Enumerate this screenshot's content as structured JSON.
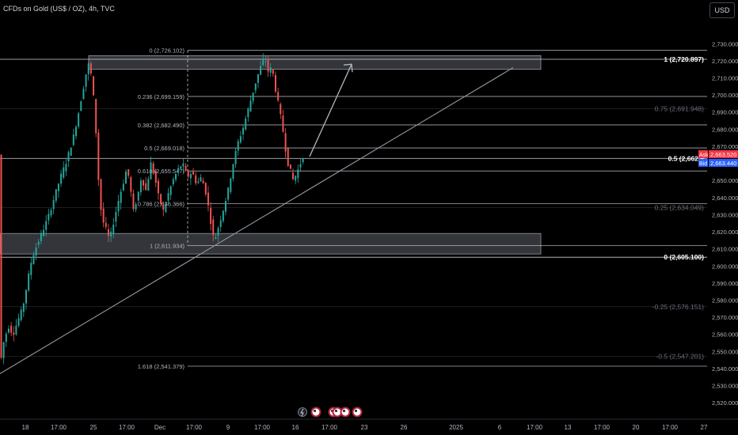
{
  "header": {
    "symbol_title": "CFDs on Gold (US$ / OZ), 4h, TVC",
    "currency_button": "USD"
  },
  "colors": {
    "background": "#000000",
    "bull": "#26a69a",
    "bear": "#ef5350",
    "fib_line": "#d1d4dc",
    "zone_fill": "#5d606b",
    "trendline": "#9598a1",
    "ask": "#f23645",
    "bid": "#2962ff"
  },
  "chart_data": {
    "type": "candlestick",
    "y_axis": {
      "min": 2515,
      "max": 2744,
      "ticks": [
        2520,
        2530,
        2540,
        2550,
        2560,
        2570,
        2580,
        2590,
        2600,
        2610,
        2620,
        2630,
        2640,
        2650,
        2660,
        2670,
        2680,
        2690,
        2700,
        2710,
        2720,
        2730
      ],
      "tick_labels": [
        "2,520.000",
        "2,530.000",
        "2,540.000",
        "2,550.000",
        "2,560.000",
        "2,570.000",
        "2,580.000",
        "2,590.000",
        "2,600.000",
        "2,610.000",
        "2,620.000",
        "2,630.000",
        "2,640.000",
        "2,650.000",
        "2,660.000",
        "2,670.000",
        "2,680.000",
        "2,690.000",
        "2,700.000",
        "2,710.000",
        "2,720.000",
        "2,730.000"
      ]
    },
    "x_axis": {
      "tick_labels": [
        "18",
        "17:00",
        "25",
        "17:00",
        "Dec",
        "17:00",
        "9",
        "17:00",
        "16",
        "17:00",
        "23",
        "26",
        "2025",
        "6",
        "17:00",
        "13",
        "17:00",
        "20",
        "17:00",
        "27"
      ]
    },
    "price_path": [
      [
        0,
        2537
      ],
      [
        6,
        2555
      ],
      [
        12,
        2565
      ],
      [
        18,
        2560
      ],
      [
        24,
        2568
      ],
      [
        30,
        2575
      ],
      [
        36,
        2590
      ],
      [
        42,
        2605
      ],
      [
        48,
        2612
      ],
      [
        55,
        2620
      ],
      [
        62,
        2628
      ],
      [
        70,
        2640
      ],
      [
        78,
        2652
      ],
      [
        86,
        2662
      ],
      [
        94,
        2675
      ],
      [
        100,
        2688
      ],
      [
        105,
        2700
      ],
      [
        110,
        2712
      ],
      [
        114,
        2719
      ],
      [
        118,
        2708
      ],
      [
        122,
        2685
      ],
      [
        126,
        2650
      ],
      [
        130,
        2628
      ],
      [
        135,
        2622
      ],
      [
        140,
        2615
      ],
      [
        146,
        2628
      ],
      [
        152,
        2640
      ],
      [
        158,
        2650
      ],
      [
        162,
        2658
      ],
      [
        166,
        2646
      ],
      [
        170,
        2632
      ],
      [
        175,
        2640
      ],
      [
        180,
        2652
      ],
      [
        186,
        2644
      ],
      [
        192,
        2660
      ],
      [
        197,
        2652
      ],
      [
        202,
        2640
      ],
      [
        208,
        2632
      ],
      [
        214,
        2642
      ],
      [
        220,
        2650
      ],
      [
        226,
        2656
      ],
      [
        232,
        2660
      ],
      [
        238,
        2652
      ],
      [
        244,
        2655
      ],
      [
        250,
        2648
      ],
      [
        256,
        2652
      ],
      [
        262,
        2642
      ],
      [
        267,
        2628
      ],
      [
        272,
        2614
      ],
      [
        278,
        2624
      ],
      [
        284,
        2634
      ],
      [
        290,
        2645
      ],
      [
        296,
        2660
      ],
      [
        302,
        2672
      ],
      [
        308,
        2680
      ],
      [
        314,
        2690
      ],
      [
        320,
        2700
      ],
      [
        326,
        2710
      ],
      [
        332,
        2718
      ],
      [
        336,
        2722
      ],
      [
        340,
        2714
      ],
      [
        345,
        2716
      ],
      [
        350,
        2702
      ],
      [
        355,
        2690
      ],
      [
        360,
        2676
      ],
      [
        364,
        2662
      ],
      [
        368,
        2656
      ],
      [
        372,
        2650
      ],
      [
        376,
        2654
      ],
      [
        381,
        2660
      ],
      [
        385,
        2665
      ]
    ],
    "fib_retracement_left": {
      "levels": [
        {
          "label": "0 (2,726.102)",
          "price": 2726.102
        },
        {
          "label": "0.236 (2,699.159)",
          "price": 2699.159
        },
        {
          "label": "0.382 (2,682.490)",
          "price": 2682.49
        },
        {
          "label": "0.5 (2,669.018)",
          "price": 2669.018
        },
        {
          "label": "0.618 (2,655.547)",
          "price": 2655.547
        },
        {
          "label": "0.786 (2,636.366)",
          "price": 2636.366
        },
        {
          "label": "1 (2,611.934)",
          "price": 2611.934
        },
        {
          "label": "1.618 (2,541.379)",
          "price": 2541.379
        }
      ]
    },
    "fib_retracement_right": {
      "levels": [
        {
          "label": "1 (2,720.897)",
          "price": 2720.897,
          "bold": true
        },
        {
          "label": "0.75 (2,691.948)",
          "price": 2691.948,
          "bold": false
        },
        {
          "label": "0.5 (2,662.9",
          "price": 2662.9,
          "bold": true
        },
        {
          "label": "0.25 (2,634.049)",
          "price": 2634.049,
          "bold": false
        },
        {
          "label": "0 (2,605.100)",
          "price": 2605.1,
          "bold": true
        },
        {
          "label": "-0.25 (2,576.151)",
          "price": 2576.151,
          "bold": false
        },
        {
          "label": "-0.5 (2,547.201)",
          "price": 2547.201,
          "bold": false
        }
      ]
    },
    "zones": [
      {
        "name": "resistance",
        "top": 2723,
        "bottom": 2715
      },
      {
        "name": "support",
        "top": 2619,
        "bottom": 2607
      }
    ],
    "trendline": {
      "from": [
        2537,
        0
      ],
      "to": [
        2716,
        648
      ]
    },
    "projection_arrow": {
      "from_price": 2664,
      "to_price": 2718
    },
    "price_tags": {
      "ask_label": "Ask",
      "ask_value": "2,663.520",
      "ask_price": 2663.52,
      "bid_label": "Bid",
      "bid_value": "2,663.440",
      "bid_price": 2663.44
    }
  }
}
